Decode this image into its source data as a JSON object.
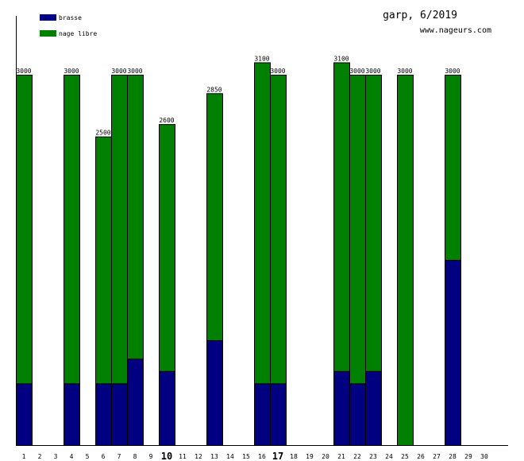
{
  "chart_data": {
    "type": "bar",
    "stacked": true,
    "title": "garp, 6/2019",
    "subtitle": "www.nageurs.com",
    "xlabel": "",
    "ylabel": "",
    "ylim": [
      0,
      3480
    ],
    "legend_position": "top-left",
    "categories": [
      "1",
      "2",
      "3",
      "4",
      "5",
      "6",
      "7",
      "8",
      "9",
      "10",
      "11",
      "12",
      "13",
      "14",
      "15",
      "16",
      "17",
      "18",
      "19",
      "20",
      "21",
      "22",
      "23",
      "24",
      "25",
      "26",
      "27",
      "28",
      "29",
      "30"
    ],
    "bold_categories": [
      "10",
      "17"
    ],
    "series": [
      {
        "name": "brasse",
        "color": "#000080",
        "values": [
          500,
          0,
          0,
          500,
          0,
          500,
          500,
          700,
          0,
          600,
          0,
          0,
          850,
          0,
          0,
          500,
          500,
          0,
          0,
          0,
          600,
          500,
          600,
          0,
          0,
          0,
          0,
          1500,
          0,
          0
        ]
      },
      {
        "name": "nage libre",
        "color": "#008000",
        "values": [
          2500,
          0,
          0,
          2500,
          0,
          2000,
          2500,
          2300,
          0,
          2000,
          0,
          0,
          2000,
          0,
          0,
          2600,
          2500,
          0,
          0,
          0,
          2500,
          2500,
          2400,
          0,
          3000,
          0,
          0,
          1500,
          0,
          0
        ]
      }
    ],
    "totals": [
      3000,
      0,
      0,
      3000,
      0,
      2500,
      3000,
      3000,
      0,
      2600,
      0,
      0,
      2850,
      0,
      0,
      3100,
      3000,
      0,
      0,
      0,
      3100,
      3000,
      3000,
      0,
      3000,
      0,
      0,
      3000,
      0,
      0
    ]
  }
}
